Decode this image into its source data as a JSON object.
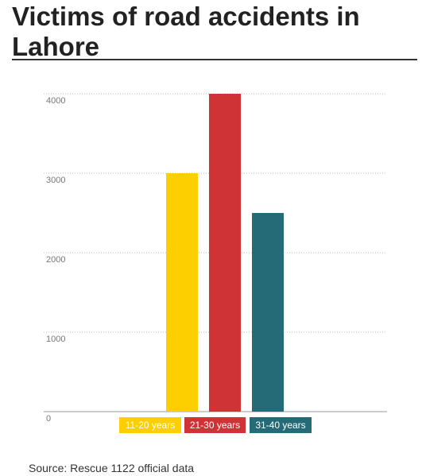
{
  "chart_data": {
    "type": "bar",
    "title": "Victims of road accidents in Lahore",
    "categories": [
      "11-20 years",
      "21-30 years",
      "31-40 years"
    ],
    "values": [
      3000,
      4000,
      2500
    ],
    "colors": [
      "#fecf00",
      "#cf3336",
      "#256b77"
    ],
    "ylim": [
      0,
      4000
    ],
    "yticks": [
      0,
      1000,
      2000,
      3000,
      4000
    ],
    "grid": true,
    "source": "Source: Rescue 1122 official data"
  }
}
